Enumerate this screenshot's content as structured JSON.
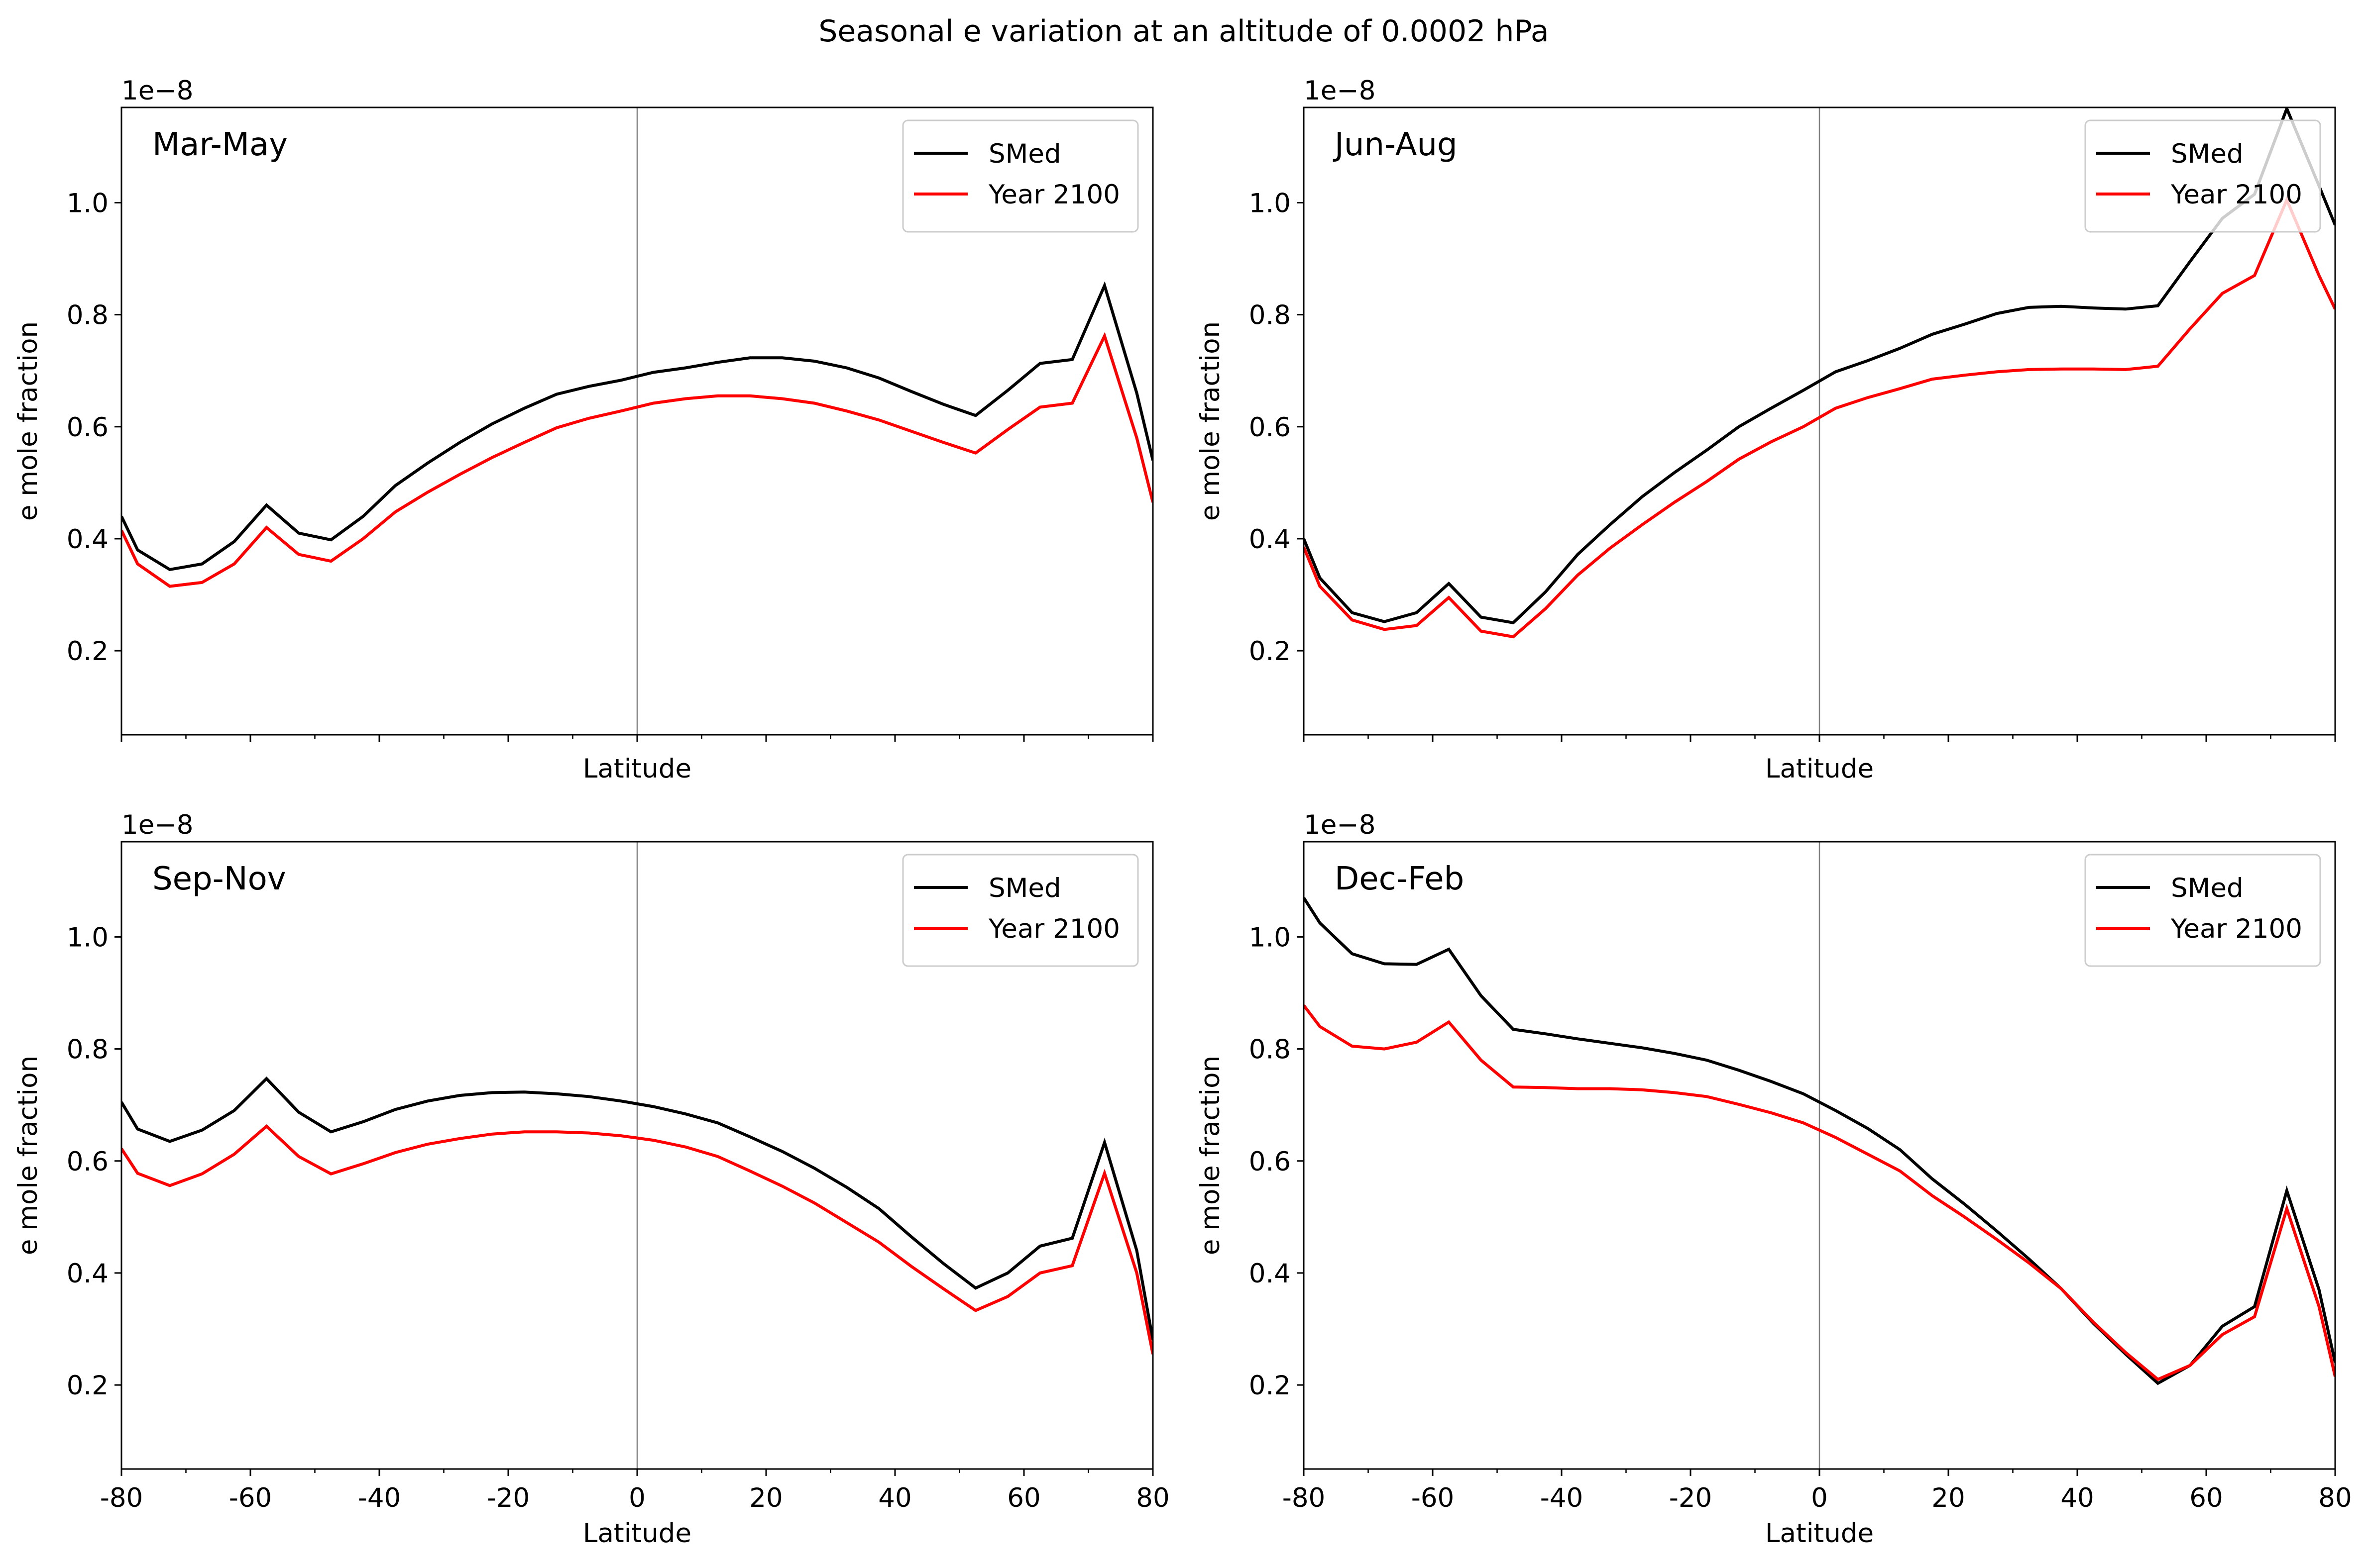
{
  "figure_title": "Seasonal e variation at an altitude of 0.0002 hPa",
  "colors": {
    "SMed": "#000000",
    "Year 2100": "#ff0000",
    "zero_line": "#808080"
  },
  "chart_data": [
    {
      "type": "line",
      "panel_title": "Mar-May",
      "xlabel": "Latitude",
      "ylabel": "e mole fraction",
      "offset_text": "1e−8",
      "xlim": [
        -80,
        80
      ],
      "ylim": [
        0.05,
        1.17
      ],
      "xticks": [
        -80,
        -60,
        -40,
        -20,
        0,
        20,
        40,
        60,
        80
      ],
      "show_xtick_labels": false,
      "yticks": [
        0.2,
        0.4,
        0.6,
        0.8,
        1.0
      ],
      "ytick_labels": [
        "0.2",
        "0.4",
        "0.6",
        "0.8",
        "1.0"
      ],
      "legend": "top-right",
      "vline_x": 0,
      "x": [
        -80,
        -77.5,
        -72.5,
        -67.5,
        -62.5,
        -57.5,
        -52.5,
        -47.5,
        -42.5,
        -37.5,
        -32.5,
        -27.5,
        -22.5,
        -17.5,
        -12.5,
        -7.5,
        -2.5,
        2.5,
        7.5,
        12.5,
        17.5,
        22.5,
        27.5,
        32.5,
        37.5,
        42.5,
        47.5,
        52.5,
        57.5,
        62.5,
        67.5,
        72.5,
        77.5,
        80
      ],
      "series": [
        {
          "name": "SMed",
          "values": [
            0.44,
            0.38,
            0.345,
            0.355,
            0.395,
            0.46,
            0.41,
            0.398,
            0.44,
            0.495,
            0.535,
            0.572,
            0.605,
            0.633,
            0.658,
            0.672,
            0.683,
            0.697,
            0.705,
            0.715,
            0.723,
            0.723,
            0.717,
            0.705,
            0.687,
            0.663,
            0.64,
            0.62,
            0.665,
            0.713,
            0.72,
            0.852,
            0.66,
            0.54
          ]
        },
        {
          "name": "Year 2100",
          "values": [
            0.415,
            0.355,
            0.315,
            0.322,
            0.355,
            0.42,
            0.372,
            0.36,
            0.4,
            0.448,
            0.483,
            0.515,
            0.545,
            0.572,
            0.598,
            0.615,
            0.628,
            0.642,
            0.65,
            0.655,
            0.655,
            0.65,
            0.642,
            0.628,
            0.612,
            0.592,
            0.572,
            0.553,
            0.595,
            0.635,
            0.642,
            0.762,
            0.58,
            0.465
          ]
        }
      ]
    },
    {
      "type": "line",
      "panel_title": "Jun-Aug",
      "xlabel": "Latitude",
      "ylabel": "e mole fraction",
      "offset_text": "1e−8",
      "xlim": [
        -80,
        80
      ],
      "ylim": [
        0.05,
        1.17
      ],
      "xticks": [
        -80,
        -60,
        -40,
        -20,
        0,
        20,
        40,
        60,
        80
      ],
      "show_xtick_labels": false,
      "yticks": [
        0.2,
        0.4,
        0.6,
        0.8,
        1.0
      ],
      "ytick_labels": [
        "0.2",
        "0.4",
        "0.6",
        "0.8",
        "1.0"
      ],
      "legend": "top-right",
      "vline_x": 0,
      "x": [
        -80,
        -77.5,
        -72.5,
        -67.5,
        -62.5,
        -57.5,
        -52.5,
        -47.5,
        -42.5,
        -37.5,
        -32.5,
        -27.5,
        -22.5,
        -17.5,
        -12.5,
        -7.5,
        -2.5,
        2.5,
        7.5,
        12.5,
        17.5,
        22.5,
        27.5,
        32.5,
        37.5,
        42.5,
        47.5,
        52.5,
        57.5,
        62.5,
        67.5,
        72.5,
        77.5,
        80
      ],
      "series": [
        {
          "name": "SMed",
          "values": [
            0.4,
            0.33,
            0.268,
            0.252,
            0.268,
            0.32,
            0.26,
            0.25,
            0.305,
            0.372,
            0.425,
            0.475,
            0.518,
            0.558,
            0.6,
            0.633,
            0.665,
            0.698,
            0.718,
            0.74,
            0.765,
            0.783,
            0.802,
            0.813,
            0.815,
            0.812,
            0.81,
            0.816,
            0.895,
            0.972,
            1.015,
            1.168,
            1.03,
            0.96
          ]
        },
        {
          "name": "Year 2100",
          "values": [
            0.385,
            0.315,
            0.255,
            0.238,
            0.245,
            0.295,
            0.235,
            0.225,
            0.275,
            0.335,
            0.383,
            0.425,
            0.465,
            0.502,
            0.542,
            0.573,
            0.6,
            0.633,
            0.652,
            0.668,
            0.685,
            0.692,
            0.698,
            0.702,
            0.703,
            0.703,
            0.702,
            0.708,
            0.775,
            0.838,
            0.87,
            1.005,
            0.87,
            0.81
          ]
        }
      ]
    },
    {
      "type": "line",
      "panel_title": "Sep-Nov",
      "xlabel": "Latitude",
      "ylabel": "e mole fraction",
      "offset_text": "1e−8",
      "xlim": [
        -80,
        80
      ],
      "ylim": [
        0.05,
        1.17
      ],
      "xticks": [
        -80,
        -60,
        -40,
        -20,
        0,
        20,
        40,
        60,
        80
      ],
      "show_xtick_labels": true,
      "xtick_labels": [
        "-80",
        "-60",
        "-40",
        "-20",
        "0",
        "20",
        "40",
        "60",
        "80"
      ],
      "yticks": [
        0.2,
        0.4,
        0.6,
        0.8,
        1.0
      ],
      "ytick_labels": [
        "0.2",
        "0.4",
        "0.6",
        "0.8",
        "1.0"
      ],
      "legend": "top-right",
      "vline_x": 0,
      "x": [
        -80,
        -77.5,
        -72.5,
        -67.5,
        -62.5,
        -57.5,
        -52.5,
        -47.5,
        -42.5,
        -37.5,
        -32.5,
        -27.5,
        -22.5,
        -17.5,
        -12.5,
        -7.5,
        -2.5,
        2.5,
        7.5,
        12.5,
        17.5,
        22.5,
        27.5,
        32.5,
        37.5,
        42.5,
        47.5,
        52.5,
        57.5,
        62.5,
        67.5,
        72.5,
        77.5,
        80
      ],
      "series": [
        {
          "name": "SMed",
          "values": [
            0.705,
            0.657,
            0.635,
            0.655,
            0.69,
            0.747,
            0.687,
            0.652,
            0.67,
            0.692,
            0.707,
            0.717,
            0.722,
            0.723,
            0.72,
            0.715,
            0.707,
            0.697,
            0.684,
            0.668,
            0.643,
            0.617,
            0.587,
            0.553,
            0.515,
            0.465,
            0.417,
            0.373,
            0.4,
            0.448,
            0.462,
            0.633,
            0.44,
            0.28
          ]
        },
        {
          "name": "Year 2100",
          "values": [
            0.622,
            0.578,
            0.556,
            0.577,
            0.612,
            0.662,
            0.608,
            0.577,
            0.595,
            0.615,
            0.63,
            0.64,
            0.648,
            0.652,
            0.652,
            0.65,
            0.645,
            0.637,
            0.625,
            0.608,
            0.582,
            0.555,
            0.525,
            0.49,
            0.455,
            0.412,
            0.372,
            0.333,
            0.358,
            0.4,
            0.413,
            0.578,
            0.4,
            0.255
          ]
        }
      ]
    },
    {
      "type": "line",
      "panel_title": "Dec-Feb",
      "xlabel": "Latitude",
      "ylabel": "e mole fraction",
      "offset_text": "1e−8",
      "xlim": [
        -80,
        80
      ],
      "ylim": [
        0.05,
        1.17
      ],
      "xticks": [
        -80,
        -60,
        -40,
        -20,
        0,
        20,
        40,
        60,
        80
      ],
      "show_xtick_labels": true,
      "xtick_labels": [
        "-80",
        "-60",
        "-40",
        "-20",
        "0",
        "20",
        "40",
        "60",
        "80"
      ],
      "yticks": [
        0.2,
        0.4,
        0.6,
        0.8,
        1.0
      ],
      "ytick_labels": [
        "0.2",
        "0.4",
        "0.6",
        "0.8",
        "1.0"
      ],
      "legend": "top-right",
      "vline_x": 0,
      "x": [
        -80,
        -77.5,
        -72.5,
        -67.5,
        -62.5,
        -57.5,
        -52.5,
        -47.5,
        -42.5,
        -37.5,
        -32.5,
        -27.5,
        -22.5,
        -17.5,
        -12.5,
        -7.5,
        -2.5,
        2.5,
        7.5,
        12.5,
        17.5,
        22.5,
        27.5,
        32.5,
        37.5,
        42.5,
        47.5,
        52.5,
        57.5,
        62.5,
        67.5,
        72.5,
        77.5,
        80
      ],
      "series": [
        {
          "name": "SMed",
          "values": [
            1.07,
            1.025,
            0.97,
            0.952,
            0.951,
            0.978,
            0.895,
            0.835,
            0.827,
            0.818,
            0.81,
            0.802,
            0.792,
            0.78,
            0.762,
            0.742,
            0.72,
            0.69,
            0.658,
            0.62,
            0.568,
            0.523,
            0.475,
            0.425,
            0.372,
            0.31,
            0.255,
            0.203,
            0.235,
            0.305,
            0.34,
            0.547,
            0.37,
            0.24
          ]
        },
        {
          "name": "Year 2100",
          "values": [
            0.878,
            0.84,
            0.805,
            0.8,
            0.812,
            0.848,
            0.78,
            0.732,
            0.731,
            0.729,
            0.729,
            0.727,
            0.722,
            0.715,
            0.701,
            0.686,
            0.668,
            0.642,
            0.612,
            0.582,
            0.538,
            0.5,
            0.46,
            0.418,
            0.372,
            0.312,
            0.258,
            0.21,
            0.235,
            0.29,
            0.322,
            0.515,
            0.34,
            0.215
          ]
        }
      ]
    }
  ]
}
